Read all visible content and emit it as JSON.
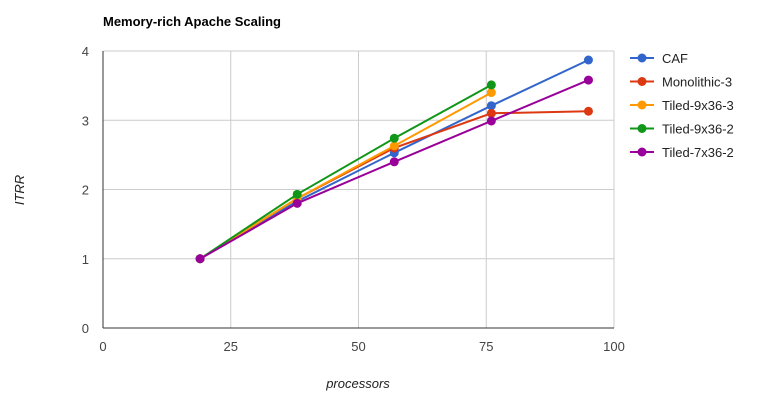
{
  "chart_data": {
    "type": "line",
    "title": "Memory-rich Apache Scaling",
    "xlabel": "processors",
    "ylabel": "ITRR",
    "xlim": [
      0,
      100
    ],
    "ylim": [
      0,
      4
    ],
    "x_ticks": [
      0,
      25,
      50,
      75,
      100
    ],
    "y_ticks": [
      0,
      1,
      2,
      3,
      4
    ],
    "grid": true,
    "legend_position": "right",
    "series": [
      {
        "name": "CAF",
        "color": "#3366cc",
        "points": [
          [
            19,
            1.0
          ],
          [
            38,
            1.83
          ],
          [
            57,
            2.53
          ],
          [
            76,
            3.21
          ],
          [
            95,
            3.87
          ]
        ]
      },
      {
        "name": "Monolithic-3",
        "color": "#dc3912",
        "points": [
          [
            19,
            1.0
          ],
          [
            38,
            1.87
          ],
          [
            57,
            2.6
          ],
          [
            76,
            3.1
          ],
          [
            95,
            3.13
          ]
        ]
      },
      {
        "name": "Tiled-9x36-3",
        "color": "#ff9900",
        "points": [
          [
            19,
            1.0
          ],
          [
            38,
            1.87
          ],
          [
            57,
            2.63
          ],
          [
            76,
            3.4
          ]
        ]
      },
      {
        "name": "Tiled-9x36-2",
        "color": "#109618",
        "points": [
          [
            19,
            1.0
          ],
          [
            38,
            1.93
          ],
          [
            57,
            2.74
          ],
          [
            76,
            3.51
          ]
        ]
      },
      {
        "name": "Tiled-7x36-2",
        "color": "#990099",
        "points": [
          [
            19,
            1.0
          ],
          [
            38,
            1.8
          ],
          [
            57,
            2.4
          ],
          [
            76,
            2.99
          ],
          [
            95,
            3.58
          ]
        ]
      }
    ]
  }
}
